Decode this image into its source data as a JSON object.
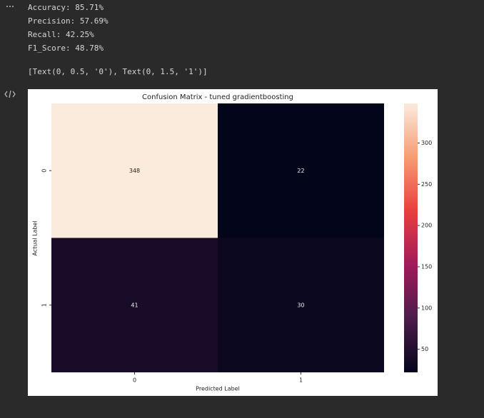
{
  "output": {
    "metrics": [
      "Accuracy: 85.71%",
      "Precision: 57.69%",
      "Recall: 42.25%",
      "F1_Score: 48.78%"
    ],
    "repr": "[Text(0, 0.5, '0'), Text(0, 1.5, '1')]"
  },
  "chart_data": {
    "type": "heatmap",
    "title": "Confusion Matrix - tuned gradientboosting",
    "x_label": "Predicted Label",
    "y_label": "Actual Label",
    "x_categories": [
      "0",
      "1"
    ],
    "y_categories": [
      "0",
      "1"
    ],
    "values": [
      [
        348,
        22
      ],
      [
        41,
        30
      ]
    ],
    "clim": [
      22,
      348
    ],
    "cticks": [
      50,
      100,
      150,
      200,
      250,
      300
    ],
    "colormap": [
      "#03051a",
      "#4c1d4b",
      "#a11a5b",
      "#e83f3f",
      "#f69c73",
      "#faebdd"
    ]
  }
}
